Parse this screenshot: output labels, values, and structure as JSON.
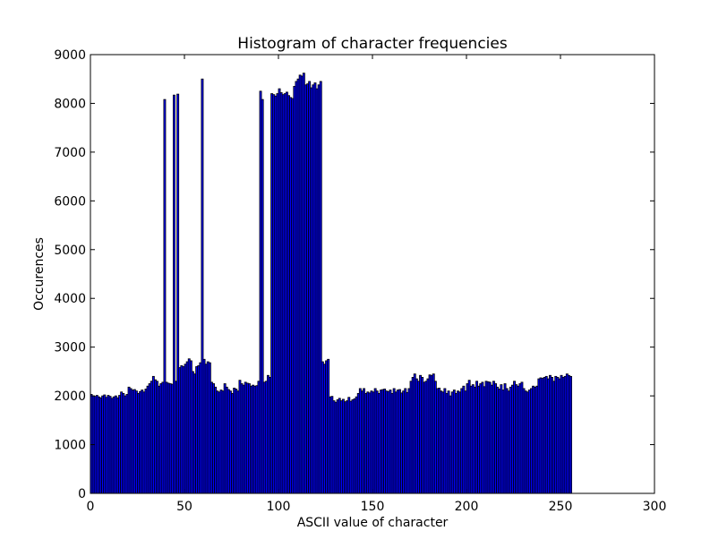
{
  "chart_data": {
    "type": "histogram",
    "title": "Histogram of character frequencies",
    "x_label": "ASCII value of character",
    "y_label": "Occurences",
    "color": "#0000ff",
    "edgecolor": "#000000",
    "xlim": [
      0,
      300
    ],
    "xticks": [
      0,
      50,
      100,
      150,
      200,
      250,
      300
    ],
    "ylim": [
      0,
      9000
    ],
    "yticks": [
      0,
      1000,
      2000,
      3000,
      4000,
      5000,
      6000,
      7000,
      8000,
      9000
    ],
    "bins": [
      0,
      1,
      2,
      3,
      4,
      5,
      6,
      7,
      8,
      9,
      10,
      11,
      12,
      13,
      14,
      15,
      16,
      17,
      18,
      19,
      20,
      21,
      22,
      23,
      24,
      25,
      26,
      27,
      28,
      29,
      30,
      31,
      32,
      33,
      34,
      35,
      36,
      37,
      38,
      39,
      40,
      41,
      42,
      43,
      44,
      45,
      46,
      47,
      48,
      49,
      50,
      51,
      52,
      53,
      54,
      55,
      56,
      57,
      58,
      59,
      60,
      61,
      62,
      63,
      64,
      65,
      66,
      67,
      68,
      69,
      70,
      71,
      72,
      73,
      74,
      75,
      76,
      77,
      78,
      79,
      80,
      81,
      82,
      83,
      84,
      85,
      86,
      87,
      88,
      89,
      90,
      91,
      92,
      93,
      94,
      95,
      96,
      97,
      98,
      99,
      100,
      101,
      102,
      103,
      104,
      105,
      106,
      107,
      108,
      109,
      110,
      111,
      112,
      113,
      114,
      115,
      116,
      117,
      118,
      119,
      120,
      121,
      122,
      123,
      124,
      125,
      126,
      127,
      128,
      129,
      130,
      131,
      132,
      133,
      134,
      135,
      136,
      137,
      138,
      139,
      140,
      141,
      142,
      143,
      144,
      145,
      146,
      147,
      148,
      149,
      150,
      151,
      152,
      153,
      154,
      155,
      156,
      157,
      158,
      159,
      160,
      161,
      162,
      163,
      164,
      165,
      166,
      167,
      168,
      169,
      170,
      171,
      172,
      173,
      174,
      175,
      176,
      177,
      178,
      179,
      180,
      181,
      182,
      183,
      184,
      185,
      186,
      187,
      188,
      189,
      190,
      191,
      192,
      193,
      194,
      195,
      196,
      197,
      198,
      199,
      200,
      201,
      202,
      203,
      204,
      205,
      206,
      207,
      208,
      209,
      210,
      211,
      212,
      213,
      214,
      215,
      216,
      217,
      218,
      219,
      220,
      221,
      222,
      223,
      224,
      225,
      226,
      227,
      228,
      229,
      230,
      231,
      232,
      233,
      234,
      235,
      236,
      237,
      238,
      239,
      240,
      241,
      242,
      243,
      244,
      245,
      246,
      247,
      248,
      249,
      250,
      251,
      252,
      253,
      254,
      255,
      256
    ],
    "values": [
      2030,
      2000,
      1990,
      2010,
      1980,
      1960,
      2000,
      2020,
      1970,
      2010,
      1990,
      1950,
      1980,
      2000,
      1960,
      2010,
      2080,
      2050,
      2000,
      2030,
      2180,
      2150,
      2120,
      2130,
      2100,
      2050,
      2090,
      2120,
      2080,
      2140,
      2200,
      2250,
      2300,
      2400,
      2330,
      2300,
      2200,
      2250,
      2280,
      8080,
      2280,
      2260,
      2250,
      2240,
      8170,
      2300,
      8190,
      2580,
      2620,
      2600,
      2650,
      2700,
      2760,
      2720,
      2500,
      2450,
      2600,
      2620,
      2680,
      8500,
      2750,
      2650,
      2700,
      2680,
      2280,
      2250,
      2180,
      2100,
      2080,
      2120,
      2100,
      2250,
      2180,
      2130,
      2100,
      2050,
      2160,
      2140,
      2100,
      2320,
      2250,
      2220,
      2280,
      2260,
      2250,
      2200,
      2220,
      2200,
      2210,
      2300,
      8250,
      8080,
      2280,
      2300,
      2420,
      2380,
      8200,
      8180,
      8150,
      8200,
      8300,
      8220,
      8180,
      8200,
      8230,
      8160,
      8120,
      8100,
      8350,
      8450,
      8500,
      8580,
      8560,
      8620,
      8380,
      8400,
      8450,
      8320,
      8380,
      8420,
      8300,
      8380,
      8450,
      2700,
      2650,
      2720,
      2750,
      1980,
      1990,
      1900,
      1870,
      1920,
      1950,
      1900,
      1930,
      1880,
      1900,
      1970,
      1890,
      1920,
      1940,
      1980,
      2050,
      2150,
      2100,
      2150,
      2050,
      2080,
      2060,
      2100,
      2080,
      2150,
      2100,
      2050,
      2120,
      2130,
      2140,
      2100,
      2090,
      2120,
      2050,
      2150,
      2080,
      2120,
      2130,
      2060,
      2100,
      2150,
      2070,
      2150,
      2300,
      2380,
      2450,
      2350,
      2300,
      2420,
      2380,
      2280,
      2300,
      2350,
      2430,
      2420,
      2450,
      2300,
      2150,
      2160,
      2100,
      2080,
      2150,
      2050,
      2100,
      2000,
      2080,
      2120,
      2050,
      2100,
      2080,
      2150,
      2200,
      2100,
      2250,
      2320,
      2200,
      2230,
      2180,
      2300,
      2200,
      2250,
      2280,
      2190,
      2300,
      2290,
      2280,
      2220,
      2300,
      2250,
      2180,
      2140,
      2230,
      2120,
      2250,
      2150,
      2100,
      2180,
      2220,
      2300,
      2230,
      2200,
      2250,
      2280,
      2150,
      2100,
      2080,
      2120,
      2150,
      2200,
      2180,
      2200,
      2350,
      2370,
      2360,
      2380,
      2400,
      2350,
      2420,
      2380,
      2300,
      2400,
      2380,
      2350,
      2420,
      2380,
      2400,
      2450,
      2420,
      2400
    ]
  }
}
